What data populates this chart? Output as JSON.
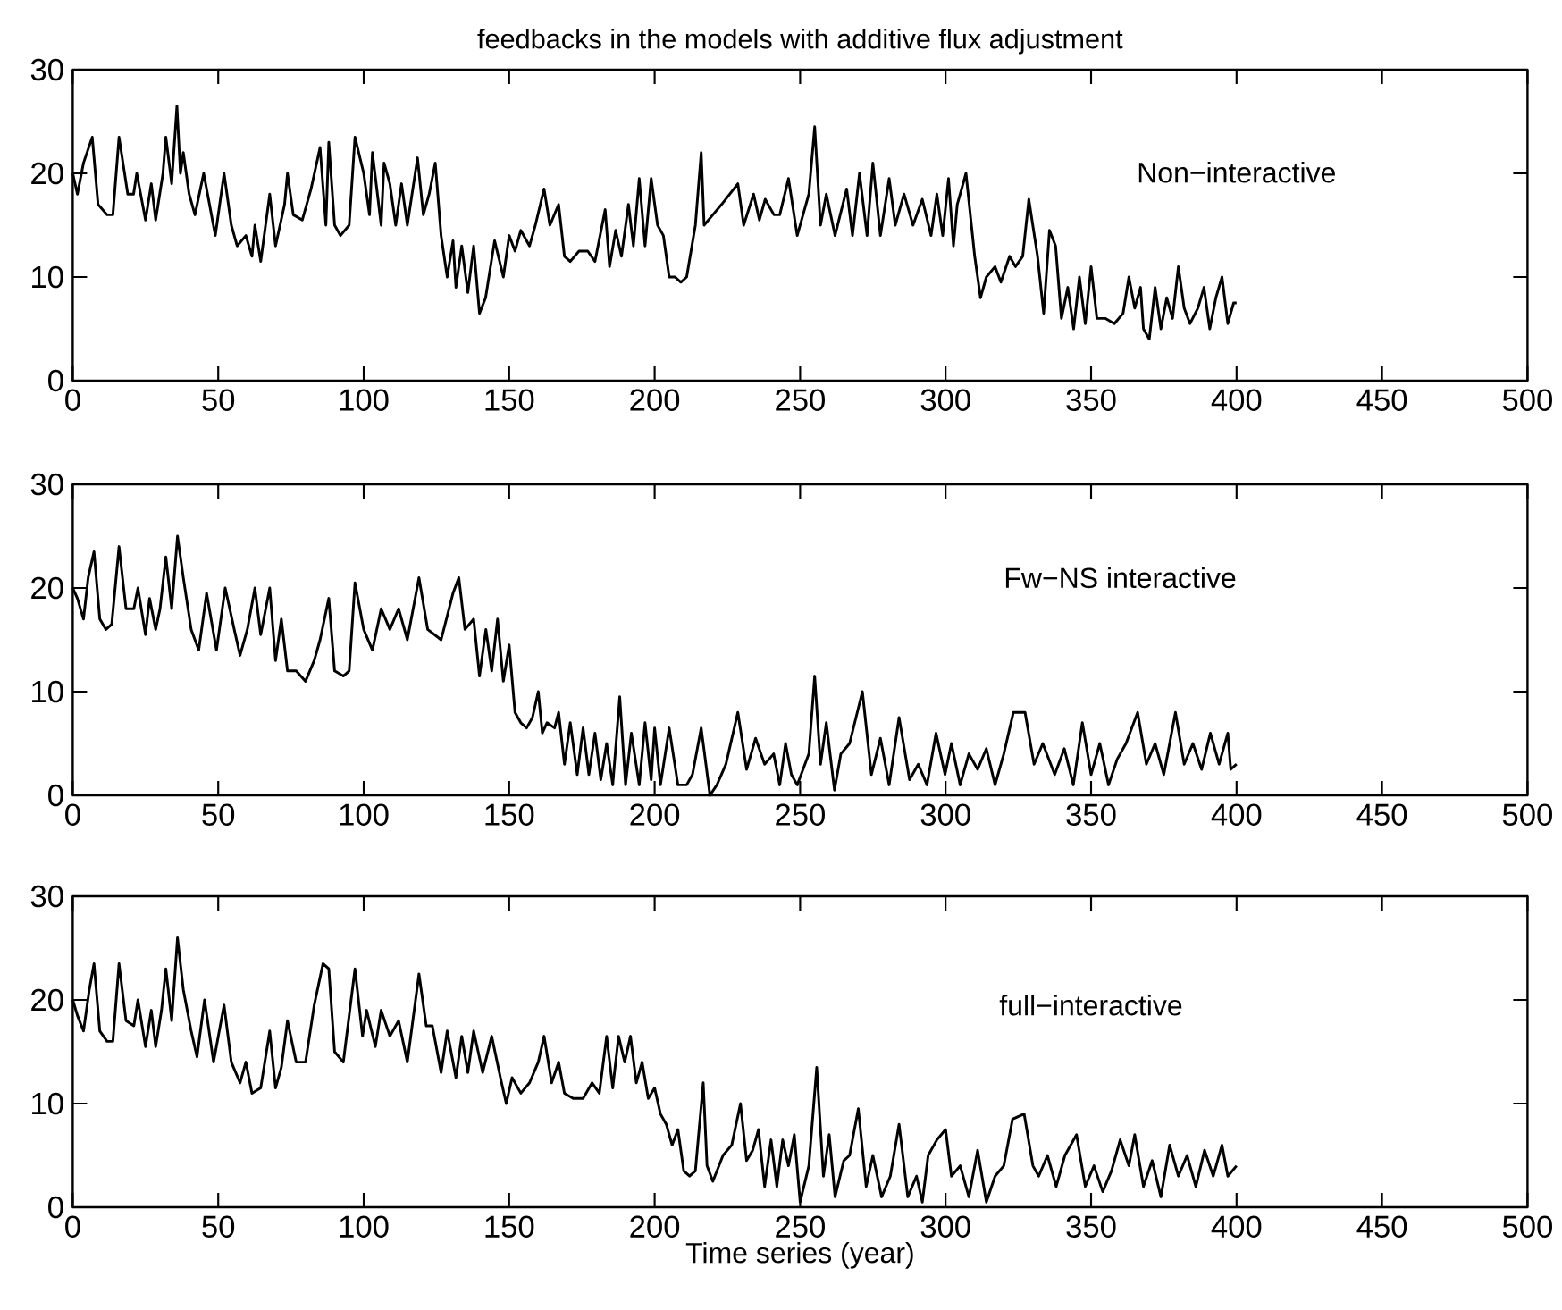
{
  "chart_data": [
    {
      "type": "line",
      "title": "feedbacks in the models with additive flux adjustment",
      "annotations": [
        "Non−interactive"
      ],
      "xlim": [
        0,
        500
      ],
      "xticks": [
        0,
        50,
        100,
        150,
        200,
        250,
        300,
        350,
        400,
        450,
        500
      ],
      "ylim": [
        0,
        30
      ],
      "yticks": [
        0,
        10,
        20,
        30
      ],
      "x": [
        0,
        1.6,
        3.7,
        6.7,
        8.7,
        11.8,
        13.8,
        15.9,
        18.9,
        20.9,
        22,
        25,
        27,
        28.5,
        31,
        32,
        34,
        35.8,
        37,
        38,
        40,
        42,
        45,
        47,
        49,
        52,
        54.5,
        56.5,
        59.5,
        61.6,
        62.6,
        64.6,
        67.7,
        69.7,
        72.8,
        73.8,
        75.8,
        78.9,
        81.9,
        85,
        87,
        88,
        90,
        92,
        95,
        97,
        100,
        102,
        103,
        106,
        107,
        109,
        111,
        113,
        115,
        118.5,
        120.5,
        122.5,
        124.6,
        126.6,
        128.7,
        130.7,
        131.7,
        133.7,
        135.8,
        137.8,
        139.8,
        141.9,
        145,
        148,
        150,
        152,
        154,
        157,
        159,
        162,
        164,
        167,
        169,
        171,
        174,
        177,
        179.5,
        183,
        184.5,
        186.6,
        188.6,
        191,
        192.7,
        194.7,
        196.7,
        198.8,
        201,
        203,
        205,
        207,
        209,
        211,
        214,
        216,
        217,
        220,
        223,
        228.6,
        230.6,
        234,
        236,
        238,
        241,
        243,
        246,
        249,
        251,
        253,
        255,
        257,
        259,
        262,
        266,
        268,
        270.4,
        273,
        275,
        277.6,
        280.6,
        282.7,
        285.7,
        288.8,
        292,
        295,
        297,
        299,
        301,
        302.7,
        304,
        307,
        310,
        312,
        314,
        317,
        319,
        322,
        324,
        326.5,
        328.6,
        331.6,
        333.7,
        335.7,
        337.8,
        339.8,
        342,
        344,
        346,
        348,
        350,
        352,
        355,
        358,
        361,
        363,
        365,
        367,
        368,
        370,
        372,
        374,
        376,
        378,
        380,
        382,
        384,
        386.7,
        388.8,
        390.8,
        392.9,
        395,
        397,
        399,
        400
      ],
      "series": [
        {
          "color": "#000000",
          "values": [
            20,
            18,
            21,
            23.5,
            17,
            16,
            16,
            23.5,
            18,
            18,
            20,
            15.5,
            19,
            15.5,
            20,
            23.5,
            19,
            26.5,
            20,
            22,
            18,
            16,
            20,
            17,
            14,
            20,
            15,
            13,
            14,
            12,
            15,
            11.5,
            18,
            13,
            17,
            20,
            16,
            15.5,
            18.5,
            22.5,
            15,
            23,
            15,
            14,
            15,
            23.5,
            20,
            16,
            22,
            15,
            21,
            19,
            15,
            19,
            15,
            21.5,
            16,
            18,
            21,
            14,
            10,
            13.5,
            9,
            13,
            8.5,
            13,
            6.5,
            8,
            13.5,
            10,
            14,
            12.5,
            14.5,
            13,
            15,
            18.5,
            15,
            17,
            12,
            11.5,
            12.5,
            12.5,
            11.5,
            16.5,
            11,
            14.5,
            12,
            17,
            13,
            19.5,
            13,
            19.5,
            15,
            14,
            10,
            10,
            9.5,
            10,
            15,
            22,
            15,
            16,
            17,
            19,
            15,
            18,
            15.5,
            17.5,
            16,
            16,
            19.5,
            14,
            16,
            18,
            24.5,
            15,
            18,
            14,
            18.5,
            14,
            20,
            14,
            21,
            14,
            19.5,
            15,
            18,
            15,
            17.5,
            14,
            18,
            14,
            19.5,
            13,
            17,
            20,
            12,
            8,
            10,
            11,
            9.5,
            12,
            11,
            12,
            17.5,
            12,
            6.5,
            14.5,
            13,
            6,
            9,
            5,
            10,
            5.5,
            11,
            6,
            6,
            5.5,
            6.5,
            10,
            7,
            9,
            5,
            4,
            9,
            5,
            8,
            6,
            11,
            7,
            5.5,
            7,
            9,
            5,
            8,
            10,
            5.5,
            7.5,
            7.5
          ]
        }
      ]
    },
    {
      "type": "line",
      "annotations": [
        "Fw−NS interactive"
      ],
      "xlim": [
        0,
        500
      ],
      "xticks": [
        0,
        50,
        100,
        150,
        200,
        250,
        300,
        350,
        400,
        450,
        500
      ],
      "ylim": [
        0,
        30
      ],
      "yticks": [
        0,
        10,
        20,
        30
      ],
      "x": [
        0,
        1.6,
        3.7,
        5.3,
        7.3,
        9.3,
        11.4,
        13.4,
        15.9,
        18.3,
        21,
        22.4,
        25,
        26.4,
        28.5,
        30,
        32,
        34,
        36,
        38,
        40.7,
        43.3,
        46,
        49.4,
        52.4,
        55.5,
        57.5,
        60,
        62.6,
        64.6,
        67.7,
        69.7,
        71.7,
        73.8,
        76.8,
        80,
        83,
        85,
        88,
        90,
        93,
        95,
        97,
        100,
        103,
        106,
        109,
        112,
        115,
        119,
        122,
        126.6,
        130.7,
        132.7,
        134.8,
        137.8,
        139.8,
        142,
        144,
        146,
        148,
        150,
        152,
        154,
        156,
        158,
        160,
        161.4,
        163,
        165.6,
        167,
        169,
        171,
        173.4,
        175.4,
        177.4,
        179.5,
        181.5,
        183.5,
        185.6,
        188,
        190,
        192,
        194.7,
        196.7,
        198.8,
        200,
        202,
        205,
        208,
        211,
        213,
        216,
        219,
        221.4,
        224.5,
        228.6,
        231.6,
        234.7,
        237.8,
        240.9,
        243,
        245,
        247,
        249,
        253,
        255,
        257,
        259,
        261.8,
        264,
        267,
        271.4,
        274.5,
        277.6,
        280.6,
        284,
        287.6,
        290.6,
        293.6,
        296.7,
        299.8,
        302,
        305,
        308,
        311,
        314,
        317,
        320,
        323.3,
        327.3,
        330.4,
        333.4,
        337.5,
        340.8,
        343.9,
        347,
        350,
        353,
        356,
        359,
        362,
        366,
        369,
        372,
        375,
        379,
        382,
        385,
        388,
        391,
        394,
        397,
        398,
        400
      ],
      "series": [
        {
          "color": "#000000",
          "values": [
            20,
            19,
            17,
            21,
            23.5,
            17,
            16,
            16.5,
            24,
            18,
            18,
            20,
            15.5,
            19,
            16,
            18,
            23,
            18,
            25,
            21,
            16,
            14,
            19.5,
            14,
            20,
            16,
            13.5,
            16,
            20,
            15.5,
            20,
            13,
            17,
            12,
            12,
            11,
            13,
            15,
            19,
            12,
            11.5,
            12,
            20.5,
            16,
            14,
            18,
            16,
            18,
            15,
            21,
            16,
            15,
            19.5,
            21,
            16,
            17,
            11.5,
            16,
            12,
            17,
            11,
            14.5,
            8,
            7,
            6.5,
            7.5,
            10,
            6,
            7,
            6.5,
            8,
            3,
            7,
            2,
            6.5,
            2,
            6,
            1.5,
            5,
            1,
            9.5,
            1,
            6,
            1,
            7,
            1.5,
            6.5,
            1,
            6.5,
            1,
            1,
            2,
            6.5,
            0,
            1,
            3,
            8,
            2.5,
            5.5,
            3,
            4,
            1,
            5,
            2,
            1,
            4,
            11.5,
            3,
            7,
            0.5,
            4,
            5,
            10,
            2,
            5.5,
            1,
            7.5,
            1.5,
            3,
            1,
            6,
            2,
            5,
            1,
            4,
            2.5,
            4.5,
            1,
            4,
            8,
            8,
            3,
            5,
            2,
            4.5,
            1,
            7,
            2,
            5,
            1,
            3.5,
            5,
            8,
            3,
            5,
            2,
            8,
            3,
            5,
            2.5,
            6,
            3,
            6,
            2.5,
            3
          ]
        }
      ]
    },
    {
      "type": "line",
      "xlabel": "Time series (year)",
      "annotations": [
        "full−interactive"
      ],
      "xlim": [
        0,
        500
      ],
      "xticks": [
        0,
        50,
        100,
        150,
        200,
        250,
        300,
        350,
        400,
        450,
        500
      ],
      "ylim": [
        0,
        30
      ],
      "yticks": [
        0,
        10,
        20,
        30
      ],
      "x": [
        0,
        1.6,
        3.7,
        5.7,
        7.3,
        9.3,
        11.8,
        13.8,
        15.9,
        18.3,
        21,
        22.4,
        25,
        27,
        28.5,
        30.5,
        32,
        34,
        36,
        38,
        40.7,
        42.7,
        45.3,
        48.4,
        52,
        54.5,
        57.5,
        59.5,
        61.6,
        64.6,
        67.7,
        69.7,
        71.7,
        73.8,
        76.8,
        80,
        83,
        86,
        88,
        90,
        93,
        97,
        99.6,
        101,
        104,
        106,
        109,
        112,
        115,
        119,
        121.5,
        123.6,
        126.6,
        128.7,
        131.7,
        133.7,
        135.8,
        137.8,
        140.9,
        144,
        147,
        149,
        151,
        154,
        157,
        160,
        162,
        164.6,
        167,
        169,
        172,
        175.4,
        178.5,
        181,
        183.5,
        185.6,
        187.6,
        189.7,
        191.7,
        193.7,
        195.7,
        197.8,
        200,
        202,
        204,
        206,
        208,
        210,
        212,
        214,
        216.7,
        218,
        220,
        223.5,
        226.5,
        229.5,
        231.6,
        233.7,
        235.7,
        237.8,
        240,
        242,
        244,
        246,
        248,
        250,
        253,
        255.7,
        258,
        260,
        262,
        265,
        267,
        270,
        272.7,
        275,
        278,
        281,
        284,
        287,
        290,
        292,
        294,
        297,
        300,
        302,
        305,
        308,
        311,
        314,
        317,
        320,
        323,
        327,
        330,
        332,
        335,
        338,
        341,
        345,
        348,
        351,
        354,
        357,
        360,
        363,
        365,
        368,
        371,
        374,
        377,
        380,
        383,
        386,
        389,
        392,
        395,
        397,
        400
      ],
      "series": [
        {
          "color": "#000000",
          "values": [
            20,
            18.5,
            17,
            21,
            23.5,
            17,
            16,
            16,
            23.5,
            18,
            17.5,
            20,
            15.5,
            19,
            15.5,
            19,
            23,
            18,
            26,
            21,
            17,
            14.5,
            20,
            14,
            19.5,
            14,
            12,
            14,
            11,
            11.5,
            17,
            11.5,
            13.5,
            18,
            14,
            14,
            19.5,
            23.5,
            23,
            15,
            14,
            23,
            16.5,
            19,
            15.5,
            19,
            16.5,
            18,
            14,
            22.5,
            17.5,
            17.5,
            13,
            17,
            12.5,
            16.5,
            13,
            17,
            13,
            16.5,
            12.5,
            10,
            12.5,
            11,
            12,
            14,
            16.5,
            12,
            14,
            11,
            10.5,
            10.5,
            12,
            11,
            16.5,
            11.5,
            16.5,
            14,
            16.5,
            12,
            14,
            10.5,
            11.5,
            9,
            8,
            6,
            7.5,
            3.5,
            3,
            3.5,
            12,
            4,
            2.5,
            5,
            6,
            10,
            4.5,
            5.5,
            7.5,
            2,
            6.5,
            2,
            6.5,
            4,
            7,
            0.5,
            4,
            13.5,
            3,
            7,
            1,
            4.5,
            5,
            9.5,
            2,
            5,
            1,
            3,
            8,
            1,
            3,
            0.5,
            5,
            6.5,
            7.5,
            3,
            4,
            1,
            5.5,
            0.5,
            3,
            4,
            8.5,
            9,
            4,
            3,
            5,
            2,
            5,
            7,
            2,
            4,
            1.5,
            3.5,
            6.5,
            4,
            7,
            2,
            4.5,
            1,
            6,
            3,
            5,
            2,
            5.5,
            3,
            6,
            3,
            4
          ]
        }
      ]
    }
  ]
}
